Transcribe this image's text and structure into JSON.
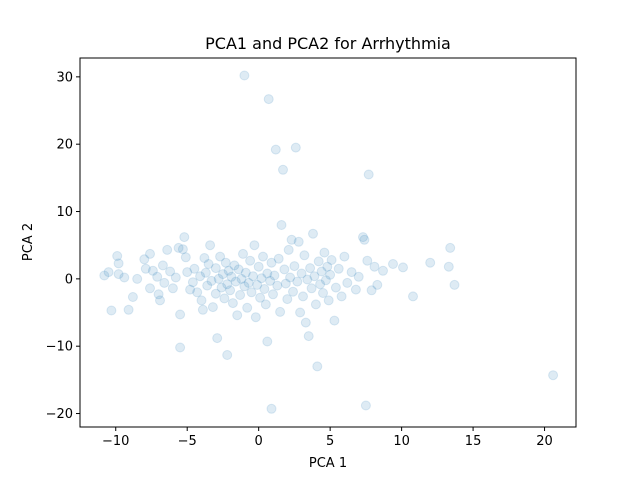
{
  "chart_data": {
    "type": "scatter",
    "title": "PCA1 and PCA2 for Arrhythmia",
    "xlabel": "PCA 1",
    "ylabel": "PCA 2",
    "xlim": [
      -12.5,
      22.2
    ],
    "ylim": [
      -22,
      32.8
    ],
    "xticks": [
      -10,
      -5,
      0,
      5,
      10,
      15,
      20
    ],
    "yticks": [
      -20,
      -10,
      0,
      10,
      20,
      30
    ],
    "xtick_labels": [
      "−10",
      "−5",
      "0",
      "5",
      "10",
      "15",
      "20"
    ],
    "ytick_labels": [
      "−20",
      "−10",
      "0",
      "10",
      "20",
      "30"
    ],
    "grid": false,
    "point_color": "#1f77b4",
    "point_alpha": 0.15,
    "points": [
      [
        -10.8,
        0.5
      ],
      [
        -10.5,
        1.0
      ],
      [
        -10.3,
        -4.7
      ],
      [
        -9.9,
        3.4
      ],
      [
        -9.8,
        2.3
      ],
      [
        -9.8,
        0.7
      ],
      [
        -9.4,
        0.2
      ],
      [
        -9.1,
        -4.6
      ],
      [
        -8.8,
        -2.7
      ],
      [
        -8.5,
        0.0
      ],
      [
        -8.0,
        2.9
      ],
      [
        -7.9,
        1.5
      ],
      [
        -7.6,
        3.7
      ],
      [
        -7.6,
        -1.4
      ],
      [
        -7.4,
        1.2
      ],
      [
        -7.1,
        0.3
      ],
      [
        -7.0,
        -2.3
      ],
      [
        -6.9,
        -3.2
      ],
      [
        -6.7,
        2.0
      ],
      [
        -6.6,
        -0.6
      ],
      [
        -6.4,
        4.3
      ],
      [
        -6.2,
        1.1
      ],
      [
        -6.0,
        -1.4
      ],
      [
        -5.8,
        0.2
      ],
      [
        -5.6,
        4.6
      ],
      [
        -5.5,
        -5.3
      ],
      [
        -5.5,
        -10.2
      ],
      [
        -5.3,
        4.4
      ],
      [
        -5.2,
        6.2
      ],
      [
        -5.1,
        3.2
      ],
      [
        -5.0,
        1.0
      ],
      [
        -4.8,
        -1.6
      ],
      [
        -4.6,
        -0.5
      ],
      [
        -4.5,
        1.5
      ],
      [
        -4.3,
        -2.0
      ],
      [
        -4.1,
        0.4
      ],
      [
        -4.0,
        -3.2
      ],
      [
        -3.9,
        -4.6
      ],
      [
        -3.8,
        3.1
      ],
      [
        -3.7,
        0.9
      ],
      [
        -3.6,
        -1.0
      ],
      [
        -3.5,
        2.2
      ],
      [
        -3.4,
        5.0
      ],
      [
        -3.3,
        -0.3
      ],
      [
        -3.2,
        -4.2
      ],
      [
        -3.0,
        1.6
      ],
      [
        -3.0,
        -2.2
      ],
      [
        -2.9,
        -8.8
      ],
      [
        -2.8,
        0.0
      ],
      [
        -2.7,
        3.3
      ],
      [
        -2.6,
        -1.3
      ],
      [
        -2.5,
        0.7
      ],
      [
        -2.4,
        -2.9
      ],
      [
        -2.3,
        2.4
      ],
      [
        -2.2,
        -11.3
      ],
      [
        -2.2,
        -0.8
      ],
      [
        -2.1,
        1.2
      ],
      [
        -2.0,
        -1.7
      ],
      [
        -1.9,
        0.3
      ],
      [
        -1.8,
        -3.6
      ],
      [
        -1.7,
        2.0
      ],
      [
        -1.6,
        -0.4
      ],
      [
        -1.5,
        -5.4
      ],
      [
        -1.4,
        1.4
      ],
      [
        -1.3,
        -2.4
      ],
      [
        -1.2,
        0.0
      ],
      [
        -1.1,
        3.7
      ],
      [
        -1.0,
        -1.1
      ],
      [
        -1.0,
        30.2
      ],
      [
        -0.9,
        0.9
      ],
      [
        -0.8,
        -4.3
      ],
      [
        -0.7,
        -0.6
      ],
      [
        -0.6,
        2.7
      ],
      [
        -0.5,
        -2.0
      ],
      [
        -0.4,
        0.4
      ],
      [
        -0.3,
        5.0
      ],
      [
        -0.2,
        -5.7
      ],
      [
        -0.1,
        -0.9
      ],
      [
        0.0,
        1.8
      ],
      [
        0.1,
        -2.8
      ],
      [
        0.2,
        0.1
      ],
      [
        0.3,
        3.3
      ],
      [
        0.4,
        -1.5
      ],
      [
        0.5,
        -3.8
      ],
      [
        0.6,
        0.8
      ],
      [
        0.6,
        -9.3
      ],
      [
        0.7,
        26.7
      ],
      [
        0.8,
        -0.3
      ],
      [
        0.9,
        2.4
      ],
      [
        0.9,
        -19.3
      ],
      [
        1.0,
        -2.3
      ],
      [
        1.1,
        0.5
      ],
      [
        1.2,
        19.2
      ],
      [
        1.3,
        -1.0
      ],
      [
        1.4,
        3.0
      ],
      [
        1.5,
        -4.9
      ],
      [
        1.6,
        8.0
      ],
      [
        1.7,
        16.2
      ],
      [
        1.8,
        1.4
      ],
      [
        1.9,
        -0.7
      ],
      [
        2.0,
        -3.0
      ],
      [
        2.1,
        4.3
      ],
      [
        2.2,
        0.2
      ],
      [
        2.3,
        5.8
      ],
      [
        2.4,
        -1.9
      ],
      [
        2.5,
        1.9
      ],
      [
        2.6,
        19.5
      ],
      [
        2.7,
        -0.4
      ],
      [
        2.8,
        5.5
      ],
      [
        2.9,
        -5.0
      ],
      [
        3.0,
        0.8
      ],
      [
        3.1,
        -2.6
      ],
      [
        3.2,
        3.5
      ],
      [
        3.3,
        -6.5
      ],
      [
        3.4,
        -0.1
      ],
      [
        3.5,
        -8.5
      ],
      [
        3.6,
        1.6
      ],
      [
        3.7,
        -1.4
      ],
      [
        3.8,
        6.7
      ],
      [
        3.9,
        0.4
      ],
      [
        4.0,
        -3.8
      ],
      [
        4.1,
        -13.0
      ],
      [
        4.2,
        2.6
      ],
      [
        4.3,
        -0.8
      ],
      [
        4.4,
        1.1
      ],
      [
        4.5,
        -2.1
      ],
      [
        4.6,
        3.9
      ],
      [
        4.7,
        -0.2
      ],
      [
        4.8,
        1.8
      ],
      [
        4.9,
        -3.2
      ],
      [
        5.0,
        0.6
      ],
      [
        5.1,
        2.8
      ],
      [
        5.3,
        -6.2
      ],
      [
        5.4,
        -1.3
      ],
      [
        5.6,
        1.5
      ],
      [
        5.8,
        -2.6
      ],
      [
        6.0,
        3.3
      ],
      [
        6.2,
        -0.6
      ],
      [
        6.5,
        1.0
      ],
      [
        6.8,
        -1.6
      ],
      [
        7.0,
        0.3
      ],
      [
        7.3,
        6.2
      ],
      [
        7.4,
        5.8
      ],
      [
        7.5,
        -18.8
      ],
      [
        7.6,
        2.7
      ],
      [
        7.7,
        15.5
      ],
      [
        7.9,
        -1.7
      ],
      [
        8.1,
        1.8
      ],
      [
        8.3,
        -0.9
      ],
      [
        8.7,
        1.2
      ],
      [
        9.4,
        2.2
      ],
      [
        10.1,
        1.7
      ],
      [
        10.8,
        -2.6
      ],
      [
        12.0,
        2.4
      ],
      [
        13.3,
        1.8
      ],
      [
        13.4,
        4.6
      ],
      [
        13.7,
        -0.9
      ],
      [
        20.6,
        -14.3
      ]
    ]
  }
}
